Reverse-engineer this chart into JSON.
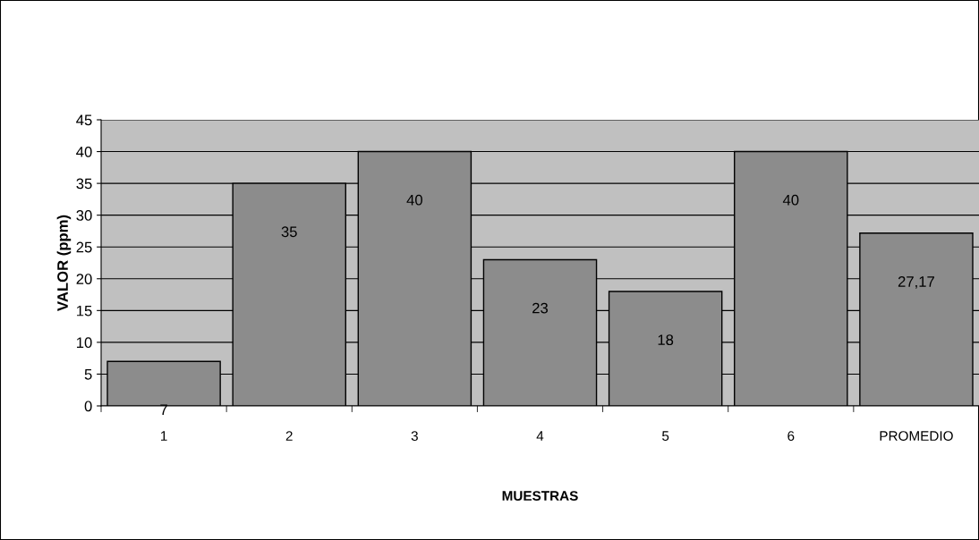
{
  "chart_data": {
    "type": "bar",
    "xlabel": "MUESTRAS",
    "ylabel": "VALOR (ppm)",
    "categories": [
      "1",
      "2",
      "3",
      "4",
      "5",
      "6",
      "PROMEDIO"
    ],
    "values": [
      7,
      35,
      40,
      23,
      18,
      40,
      27.17
    ],
    "value_labels": [
      "7",
      "35",
      "40",
      "23",
      "18",
      "40",
      "27,17"
    ],
    "color": "#8c8c8c",
    "ylim": [
      0,
      45
    ],
    "yticks": [
      0,
      5,
      10,
      15,
      20,
      25,
      30,
      35,
      40,
      45
    ],
    "grid": "y"
  }
}
